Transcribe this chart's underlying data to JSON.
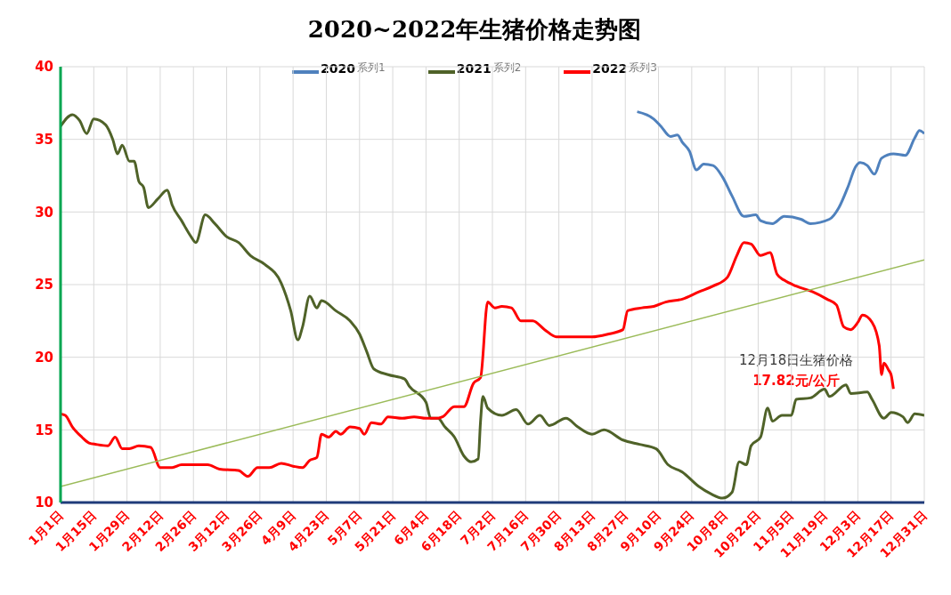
{
  "chart_data": {
    "type": "line",
    "title": "2020~2022年生猪价格走势图",
    "xlim": [
      "--01-01",
      "--12-31"
    ],
    "xticks": [
      {
        "value": "--01-01",
        "label": "1月1日"
      },
      {
        "value": "--01-15",
        "label": "1月15日"
      },
      {
        "value": "--01-29",
        "label": "1月29日"
      },
      {
        "value": "--02-12",
        "label": "2月12日"
      },
      {
        "value": "--02-26",
        "label": "2月26日"
      },
      {
        "value": "--03-12",
        "label": "3月12日"
      },
      {
        "value": "--03-26",
        "label": "3月26日"
      },
      {
        "value": "--04-09",
        "label": "4月9日"
      },
      {
        "value": "--04-23",
        "label": "4月23日"
      },
      {
        "value": "--05-07",
        "label": "5月7日"
      },
      {
        "value": "--05-21",
        "label": "5月21日"
      },
      {
        "value": "--06-04",
        "label": "6月4日"
      },
      {
        "value": "--06-18",
        "label": "6月18日"
      },
      {
        "value": "--07-02",
        "label": "7月2日"
      },
      {
        "value": "--07-16",
        "label": "7月16日"
      },
      {
        "value": "--07-30",
        "label": "7月30日"
      },
      {
        "value": "--08-13",
        "label": "8月13日"
      },
      {
        "value": "--08-27",
        "label": "8月27日"
      },
      {
        "value": "--09-10",
        "label": "9月10日"
      },
      {
        "value": "--09-24",
        "label": "9月24日"
      },
      {
        "value": "--10-08",
        "label": "10月8日"
      },
      {
        "value": "--10-22",
        "label": "10月22日"
      },
      {
        "value": "--11-05",
        "label": "11月5日"
      },
      {
        "value": "--11-19",
        "label": "11月19日"
      },
      {
        "value": "--12-03",
        "label": "12月3日"
      },
      {
        "value": "--12-17",
        "label": "12月17日"
      },
      {
        "value": "--12-31",
        "label": "12月31日"
      }
    ],
    "ylim": [
      10,
      40
    ],
    "yticks": [
      10,
      15,
      20,
      25,
      30,
      35,
      40
    ],
    "grid": true,
    "legend": "top",
    "series": [
      {
        "name": "2020",
        "color": "#4f81bd",
        "x": [
          "--09-01",
          "--09-08",
          "--09-11",
          "--09-15",
          "--09-18",
          "--09-20",
          "--09-23",
          "--09-26",
          "--09-29",
          "--10-03",
          "--10-07",
          "--10-11",
          "--10-16",
          "--10-21",
          "--10-23",
          "--10-28",
          "--11-02",
          "--11-09",
          "--11-13",
          "--11-21",
          "--11-25",
          "--11-29",
          "--12-02",
          "--12-04",
          "--12-07",
          "--12-10",
          "--12-13",
          "--12-18",
          "--12-23",
          "--12-27",
          "--12-29",
          "--12-31"
        ],
        "values": [
          36.9,
          36.4,
          35.9,
          35.2,
          35.3,
          34.8,
          34.2,
          32.9,
          33.3,
          33.2,
          32.4,
          31.1,
          29.7,
          29.8,
          29.4,
          29.2,
          29.7,
          29.5,
          29.2,
          29.5,
          30.3,
          31.8,
          33.1,
          33.4,
          33.2,
          32.6,
          33.7,
          34.0,
          33.9,
          35.1,
          35.6,
          35.4
        ]
      },
      {
        "name": "2021",
        "color": "#4f6228",
        "x": [
          "--01-01",
          "--01-06",
          "--01-09",
          "--01-12",
          "--01-15",
          "--01-20",
          "--01-23",
          "--01-25",
          "--01-27",
          "--01-30",
          "--02-01",
          "--02-03",
          "--02-05",
          "--02-07",
          "--02-11",
          "--02-15",
          "--02-17",
          "--02-21",
          "--02-25",
          "--02-27",
          "--03-03",
          "--03-07",
          "--03-12",
          "--03-17",
          "--03-22",
          "--03-28",
          "--04-04",
          "--04-08",
          "--04-11",
          "--04-13",
          "--04-16",
          "--04-19",
          "--04-21",
          "--04-27",
          "--05-03",
          "--05-07",
          "--05-10",
          "--05-13",
          "--05-19",
          "--05-26",
          "--05-28",
          "--06-04",
          "--06-06",
          "--06-09",
          "--06-12",
          "--06-16",
          "--06-20",
          "--06-23",
          "--06-26",
          "--06-27",
          "--06-28",
          "--06-30",
          "--07-06",
          "--07-12",
          "--07-17",
          "--07-22",
          "--07-26",
          "--08-02",
          "--08-07",
          "--08-13",
          "--08-18",
          "--08-26",
          "--09-02",
          "--09-09",
          "--09-14",
          "--09-20",
          "--09-27",
          "--10-02",
          "--10-07",
          "--10-11",
          "--10-14",
          "--10-17",
          "--10-19",
          "--10-23",
          "--10-26",
          "--10-28",
          "--11-01",
          "--11-05",
          "--11-07",
          "--11-13",
          "--11-19",
          "--11-21",
          "--11-28",
          "--11-30",
          "--12-07",
          "--12-09",
          "--12-14",
          "--12-17",
          "--12-22",
          "--12-24",
          "--12-27",
          "--12-31"
        ],
        "values": [
          35.9,
          36.7,
          36.3,
          35.4,
          36.4,
          36.0,
          35.0,
          34.0,
          34.6,
          33.5,
          33.5,
          32.1,
          31.7,
          30.3,
          30.9,
          31.5,
          30.5,
          29.4,
          28.3,
          27.9,
          29.8,
          29.2,
          28.3,
          27.9,
          27.0,
          26.4,
          25.1,
          23.2,
          21.2,
          22.1,
          24.2,
          23.4,
          23.9,
          23.2,
          22.5,
          21.6,
          20.4,
          19.2,
          18.8,
          18.5,
          18.0,
          16.9,
          15.8,
          15.8,
          15.2,
          14.5,
          13.2,
          12.8,
          13.0,
          15.6,
          17.3,
          16.5,
          16.0,
          16.4,
          15.4,
          16.0,
          15.3,
          15.8,
          15.2,
          14.7,
          15.0,
          14.3,
          14.0,
          13.7,
          12.6,
          12.1,
          11.1,
          10.6,
          10.3,
          10.7,
          12.8,
          12.6,
          13.9,
          14.5,
          16.5,
          15.6,
          16.0,
          16.0,
          17.1,
          17.2,
          17.8,
          17.3,
          18.1,
          17.5,
          17.6,
          17.1,
          15.8,
          16.2,
          15.9,
          15.5,
          16.1,
          16.0
        ]
      },
      {
        "name": "2022",
        "color": "#ff0000",
        "x": [
          "--01-01",
          "--01-03",
          "--01-06",
          "--01-10",
          "--01-13",
          "--01-16",
          "--01-21",
          "--01-24",
          "--01-27",
          "--01-30",
          "--02-03",
          "--02-08",
          "--02-12",
          "--02-17",
          "--02-21",
          "--02-27",
          "--03-04",
          "--03-09",
          "--03-17",
          "--03-21",
          "--03-25",
          "--03-30",
          "--04-04",
          "--04-09",
          "--04-13",
          "--04-16",
          "--04-19",
          "--04-21",
          "--04-24",
          "--04-27",
          "--04-29",
          "--05-03",
          "--05-07",
          "--05-09",
          "--05-12",
          "--05-16",
          "--05-19",
          "--05-25",
          "--05-30",
          "--06-04",
          "--06-09",
          "--06-11",
          "--06-16",
          "--06-20",
          "--06-24",
          "--06-27",
          "--06-30",
          "--07-03",
          "--07-06",
          "--07-10",
          "--07-14",
          "--07-19",
          "--07-24",
          "--07-29",
          "--08-03",
          "--08-09",
          "--08-13",
          "--08-20",
          "--08-26",
          "--08-28",
          "--09-03",
          "--09-08",
          "--09-13",
          "--09-20",
          "--09-27",
          "--10-03",
          "--10-09",
          "--10-13",
          "--10-16",
          "--10-19",
          "--10-23",
          "--10-27",
          "--10-30",
          "--11-02",
          "--11-07",
          "--11-14",
          "--11-20",
          "--11-24",
          "--11-27",
          "--11-30",
          "--12-03",
          "--12-05",
          "--12-09",
          "--12-12",
          "--12-13",
          "--12-14",
          "--12-16",
          "--12-17",
          "--12-18"
        ],
        "values": [
          16.1,
          16.0,
          15.2,
          14.5,
          14.1,
          14.0,
          13.9,
          14.5,
          13.7,
          13.7,
          13.9,
          13.8,
          12.4,
          12.4,
          12.6,
          12.6,
          12.6,
          12.3,
          12.2,
          11.8,
          12.4,
          12.4,
          12.7,
          12.5,
          12.4,
          12.9,
          13.1,
          14.7,
          14.5,
          14.9,
          14.7,
          15.2,
          15.1,
          14.7,
          15.5,
          15.4,
          15.9,
          15.8,
          15.9,
          15.8,
          15.8,
          15.9,
          16.6,
          16.6,
          18.2,
          18.6,
          23.8,
          23.4,
          23.5,
          23.4,
          22.5,
          22.5,
          21.9,
          21.4,
          21.4,
          21.4,
          21.4,
          21.6,
          21.9,
          23.2,
          23.4,
          23.5,
          23.8,
          24.0,
          24.5,
          24.9,
          25.5,
          27.0,
          27.9,
          27.8,
          27.0,
          27.2,
          25.7,
          25.3,
          24.9,
          24.5,
          24.0,
          23.6,
          22.1,
          21.9,
          22.4,
          22.9,
          22.4,
          20.8,
          18.8,
          19.6,
          19.1,
          18.8,
          17.82
        ]
      },
      {
        "type": "line",
        "color": "#9bbb59",
        "x": [
          "--01-01",
          "--12-31"
        ],
        "values": [
          11.1,
          26.7
        ]
      }
    ],
    "annotations": [
      "系列1",
      "系列2",
      "系列3",
      "12月18日生猪价格",
      "17.82元/公斤"
    ]
  }
}
